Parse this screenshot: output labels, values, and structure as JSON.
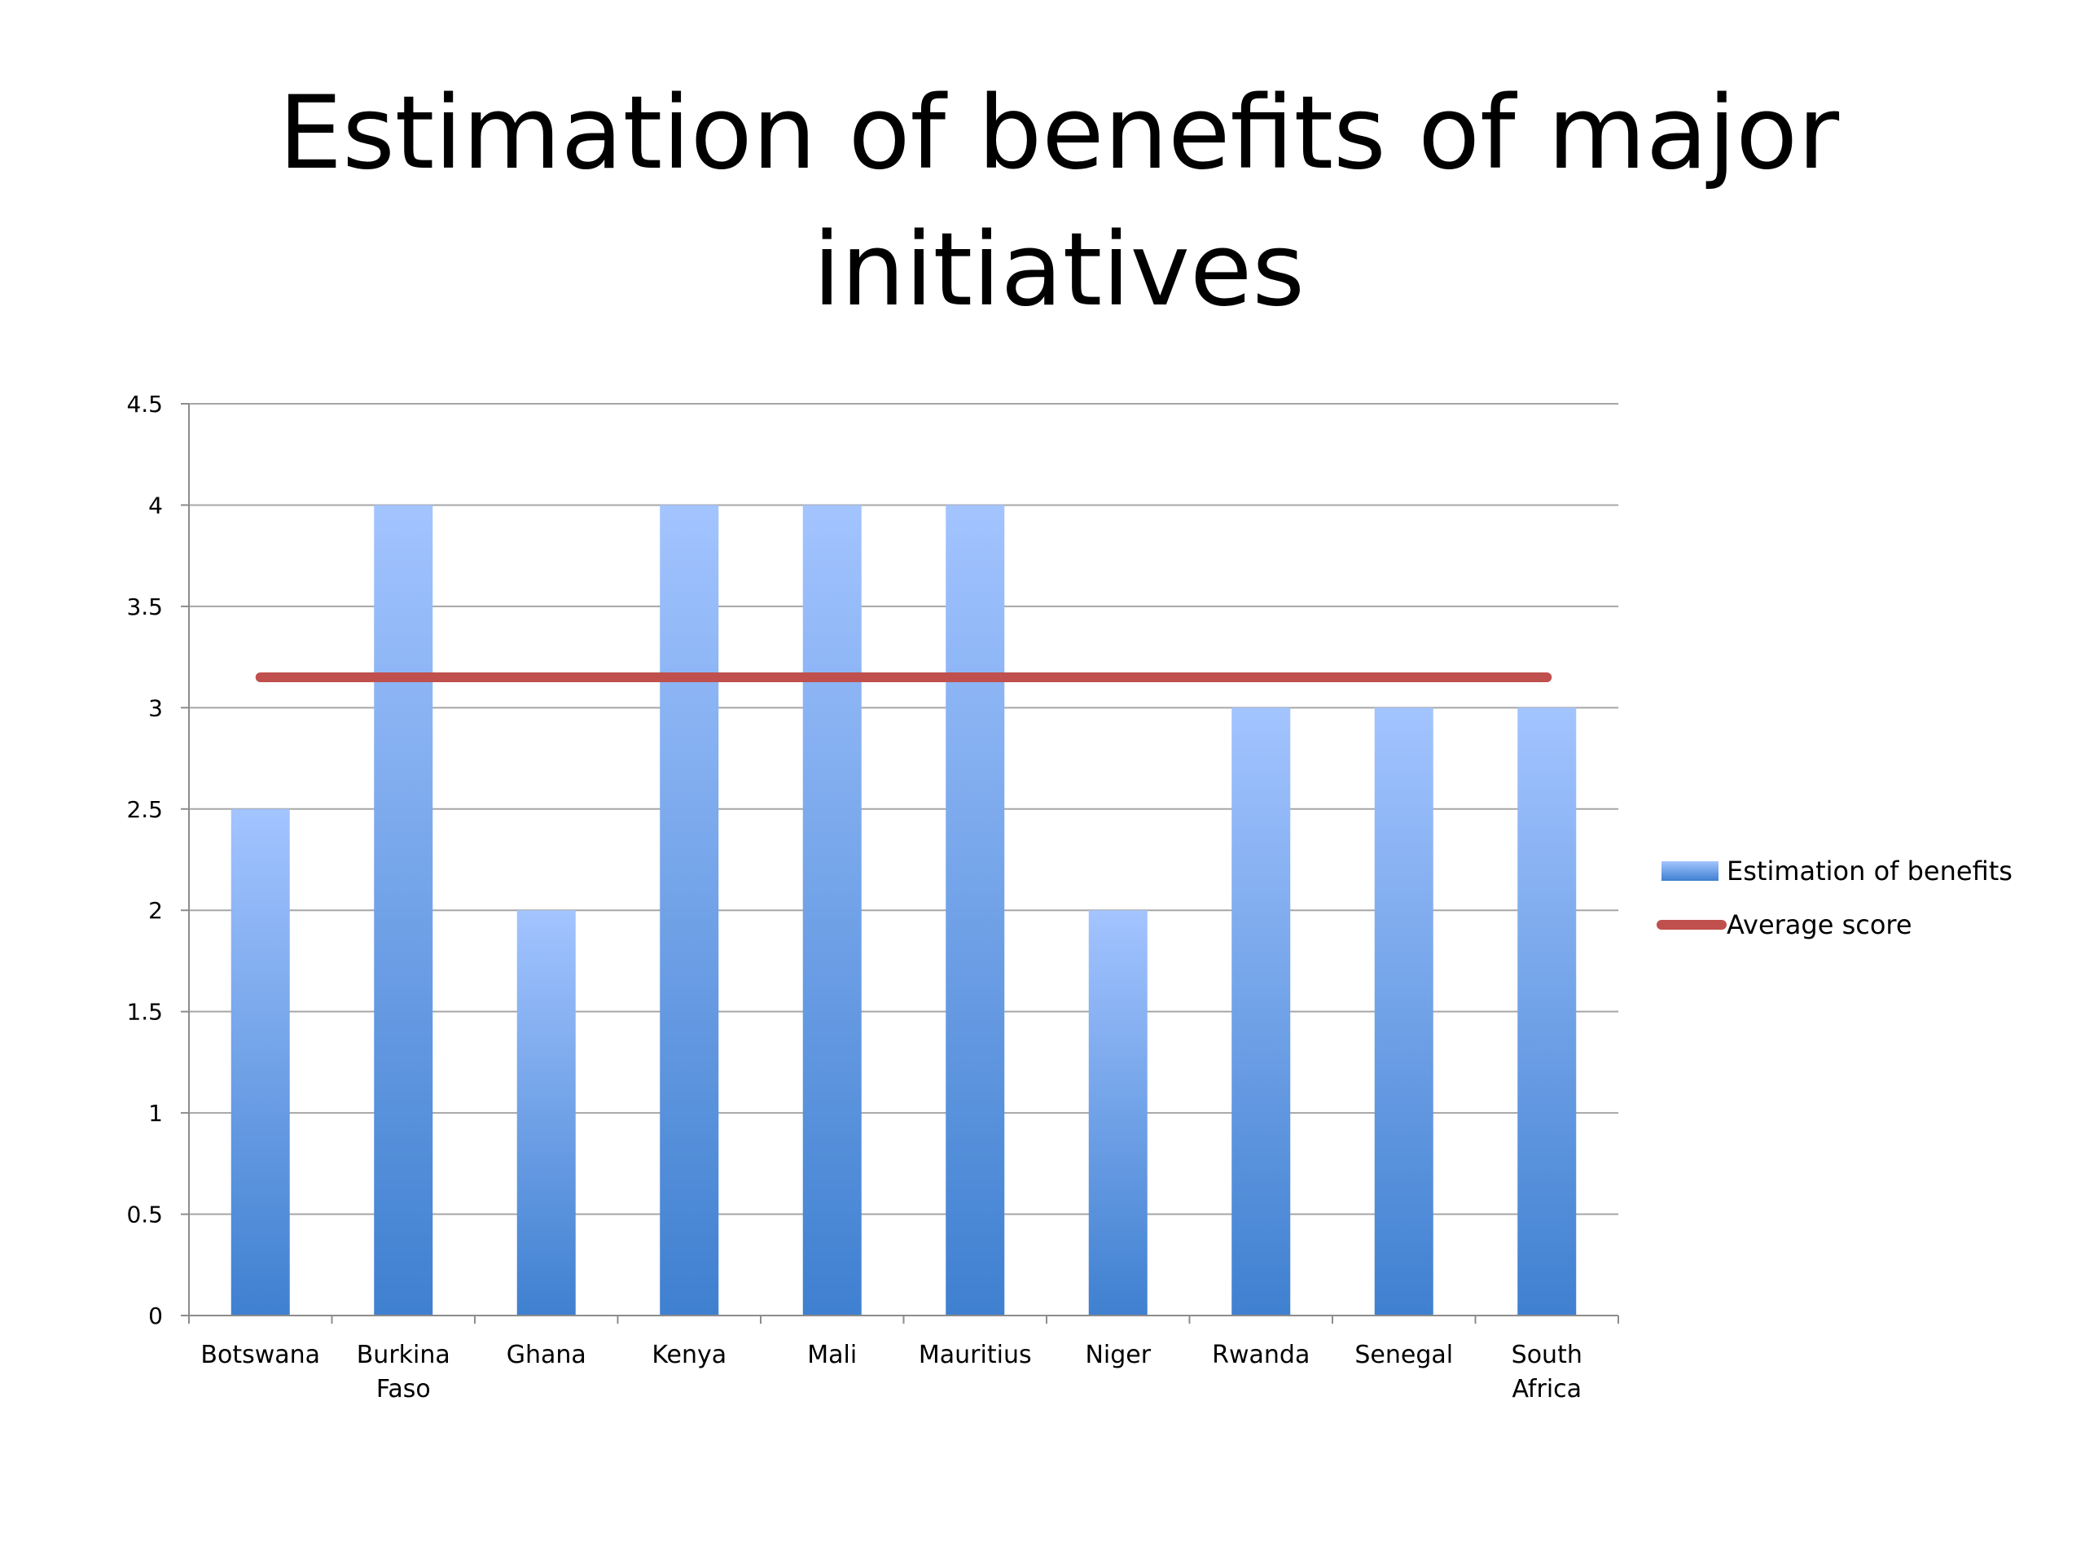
{
  "colors": {
    "bar_top": "#a3c4ff",
    "bar_bottom": "#3f80d0",
    "average_line": "#c0504d",
    "grid": "#a6a6a6",
    "axis": "#8c8c8c"
  },
  "chart_data": {
    "type": "bar",
    "title": "Estimation of benefits of major initiatives",
    "categories": [
      [
        "Botswana"
      ],
      [
        "Burkina",
        "Faso"
      ],
      [
        "Ghana"
      ],
      [
        "Kenya"
      ],
      [
        "Mali"
      ],
      [
        "Mauritius"
      ],
      [
        "Niger"
      ],
      [
        "Rwanda"
      ],
      [
        "Senegal"
      ],
      [
        "South",
        "Africa"
      ]
    ],
    "series": [
      {
        "name": "Estimation of benefits",
        "type": "bar",
        "values": [
          2.5,
          4,
          2,
          4,
          4,
          4,
          2,
          3,
          3,
          3
        ]
      },
      {
        "name": "Average score",
        "type": "line",
        "values": [
          3.15,
          3.15,
          3.15,
          3.15,
          3.15,
          3.15,
          3.15,
          3.15,
          3.15,
          3.15
        ]
      }
    ],
    "ylim": [
      0,
      4.5
    ],
    "yticks": [
      "0",
      "0.5",
      "1",
      "1.5",
      "2",
      "2.5",
      "3",
      "3.5",
      "4",
      "4.5"
    ],
    "grid": true,
    "legend_position": "right"
  }
}
